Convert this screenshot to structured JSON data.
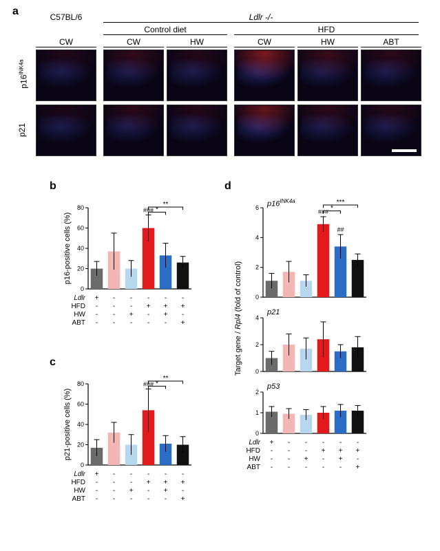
{
  "panelA": {
    "label": "a",
    "column_strain": [
      "C57BL/6",
      "Ldlr -/-"
    ],
    "diet_groups": [
      "Control diet",
      "HFD"
    ],
    "columns": [
      "CW",
      "CW",
      "HW",
      "CW",
      "HW",
      "ABT"
    ],
    "rows": [
      "p16^INK4a",
      "p21"
    ],
    "micrograph_bg": "#0a0515",
    "blue_nuclei": "#2a3a9a",
    "red_signal": "#d82a2a",
    "red_intensity_p16": [
      0.15,
      0.3,
      0.18,
      0.7,
      0.35,
      0.25
    ],
    "red_intensity_p21": [
      0.1,
      0.25,
      0.18,
      0.6,
      0.25,
      0.2
    ],
    "scalebar_color": "#ffffff"
  },
  "panelB": {
    "label": "b",
    "ylabel": "p16-positive cells (%)",
    "ylim": [
      0,
      80
    ],
    "ytick_step": 20,
    "values": [
      20,
      37,
      20,
      60,
      33,
      26
    ],
    "errors": [
      7,
      18,
      8,
      13,
      12,
      6
    ],
    "colors": [
      "#6b6b6b",
      "#f4b5b5",
      "#b7d7ef",
      "#e31a1c",
      "#2b6cc4",
      "#111111"
    ],
    "sig_top": [
      {
        "label": "###",
        "on": 3
      }
    ],
    "sig_bracket": [
      {
        "from": 3,
        "to": 4,
        "label": "*",
        "y": 73
      },
      {
        "from": 3,
        "to": 5,
        "label": "**",
        "y": 78
      }
    ]
  },
  "panelC": {
    "label": "c",
    "ylabel": "p21-positive cells (%)",
    "ylim": [
      0,
      80
    ],
    "ytick_step": 20,
    "values": [
      17,
      32,
      20,
      54,
      21,
      20
    ],
    "errors": [
      8,
      10,
      10,
      21,
      8,
      8
    ],
    "colors": [
      "#6b6b6b",
      "#f4b5b5",
      "#b7d7ef",
      "#e31a1c",
      "#2b6cc4",
      "#111111"
    ],
    "sig_top": [
      {
        "label": "###",
        "on": 3
      }
    ],
    "sig_bracket": [
      {
        "from": 3,
        "to": 4,
        "label": "*",
        "y": 75
      },
      {
        "from": 3,
        "to": 5,
        "label": "**",
        "y": 80
      }
    ]
  },
  "panelD": {
    "label": "d",
    "ylabel": "Target gene / Rpl4 (fold of control)",
    "charts": [
      {
        "title": "p16^INK4a",
        "ylim": [
          0,
          6
        ],
        "ytick_step": 2,
        "values": [
          1.1,
          1.7,
          1.1,
          4.9,
          3.4,
          2.5
        ],
        "errors": [
          0.5,
          0.7,
          0.4,
          0.5,
          0.8,
          0.4
        ],
        "sig_top": [
          {
            "label": "###",
            "on": 3
          },
          {
            "label": "##",
            "on": 4
          }
        ],
        "sig_bracket": [
          {
            "from": 3,
            "to": 4,
            "label": "*",
            "y": 5.6
          },
          {
            "from": 3,
            "to": 5,
            "label": "***",
            "y": 6.0
          }
        ]
      },
      {
        "title": "p21",
        "ylim": [
          0,
          4
        ],
        "ytick_step": 2,
        "values": [
          1.0,
          2.0,
          1.7,
          2.4,
          1.5,
          1.8
        ],
        "errors": [
          0.5,
          0.8,
          0.8,
          1.3,
          0.5,
          0.8
        ],
        "sig_top": [],
        "sig_bracket": []
      },
      {
        "title": "p53",
        "ylim": [
          0,
          2
        ],
        "ytick_step": 1,
        "values": [
          1.05,
          0.95,
          0.9,
          1.0,
          1.1,
          1.1
        ],
        "errors": [
          0.25,
          0.25,
          0.25,
          0.3,
          0.3,
          0.25
        ],
        "sig_top": [],
        "sig_bracket": []
      }
    ],
    "colors": [
      "#6b6b6b",
      "#f4b5b5",
      "#b7d7ef",
      "#e31a1c",
      "#2b6cc4",
      "#111111"
    ]
  },
  "conditions": {
    "rows": [
      "Ldlr",
      "HFD",
      "HW",
      "ABT"
    ],
    "table": [
      [
        "+",
        "-",
        "-",
        "-",
        "-",
        "-"
      ],
      [
        "-",
        "-",
        "-",
        "+",
        "+",
        "+"
      ],
      [
        "-",
        "-",
        "+",
        "-",
        "+",
        "-"
      ],
      [
        "-",
        "-",
        "-",
        "-",
        "-",
        "+"
      ]
    ]
  },
  "axis_color": "#000000",
  "tick_fontsize": 9
}
